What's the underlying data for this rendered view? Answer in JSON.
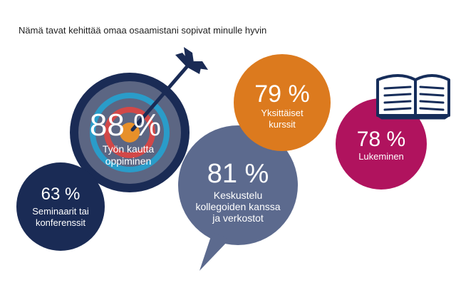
{
  "title": "Nämä tavat kehittää omaa osaamistani sopivat minulle hyvin",
  "colors": {
    "navy": "#1a2b55",
    "target_ring_gray": "#5c6683",
    "target_ring_blue": "#2a9cc9",
    "target_ring_red": "#d24848",
    "target_center": "#e7902a",
    "orange": "#dc7a1e",
    "magenta": "#b0135e",
    "slate": "#5c6a8e",
    "book_blue": "#162d5a"
  },
  "chart_data": {
    "type": "bubble",
    "title": "Nämä tavat kehittää omaa osaamistani sopivat minulle hyvin",
    "items": [
      {
        "key": "work",
        "value_label": "88 %",
        "value": 88,
        "label_lines": [
          "Työn kautta",
          "oppiminen"
        ],
        "color": "#1a2b55",
        "icon": "target-arrow-icon"
      },
      {
        "key": "seminars",
        "value_label": "63 %",
        "value": 63,
        "label_lines": [
          "Seminaarit tai",
          "konferenssit"
        ],
        "color": "#1a2b55"
      },
      {
        "key": "discussion",
        "value_label": "81 %",
        "value": 81,
        "label_lines": [
          "Keskustelu",
          "kollegoiden kanssa",
          "ja verkostot"
        ],
        "color": "#5c6a8e",
        "icon": "speech-bubble"
      },
      {
        "key": "courses",
        "value_label": "79 %",
        "value": 79,
        "label_lines": [
          "Yksittäiset",
          "kurssit"
        ],
        "color": "#dc7a1e"
      },
      {
        "key": "reading",
        "value_label": "78 %",
        "value": 78,
        "label_lines": [
          "Lukeminen"
        ],
        "color": "#b0135e",
        "icon": "open-book-icon"
      }
    ]
  }
}
